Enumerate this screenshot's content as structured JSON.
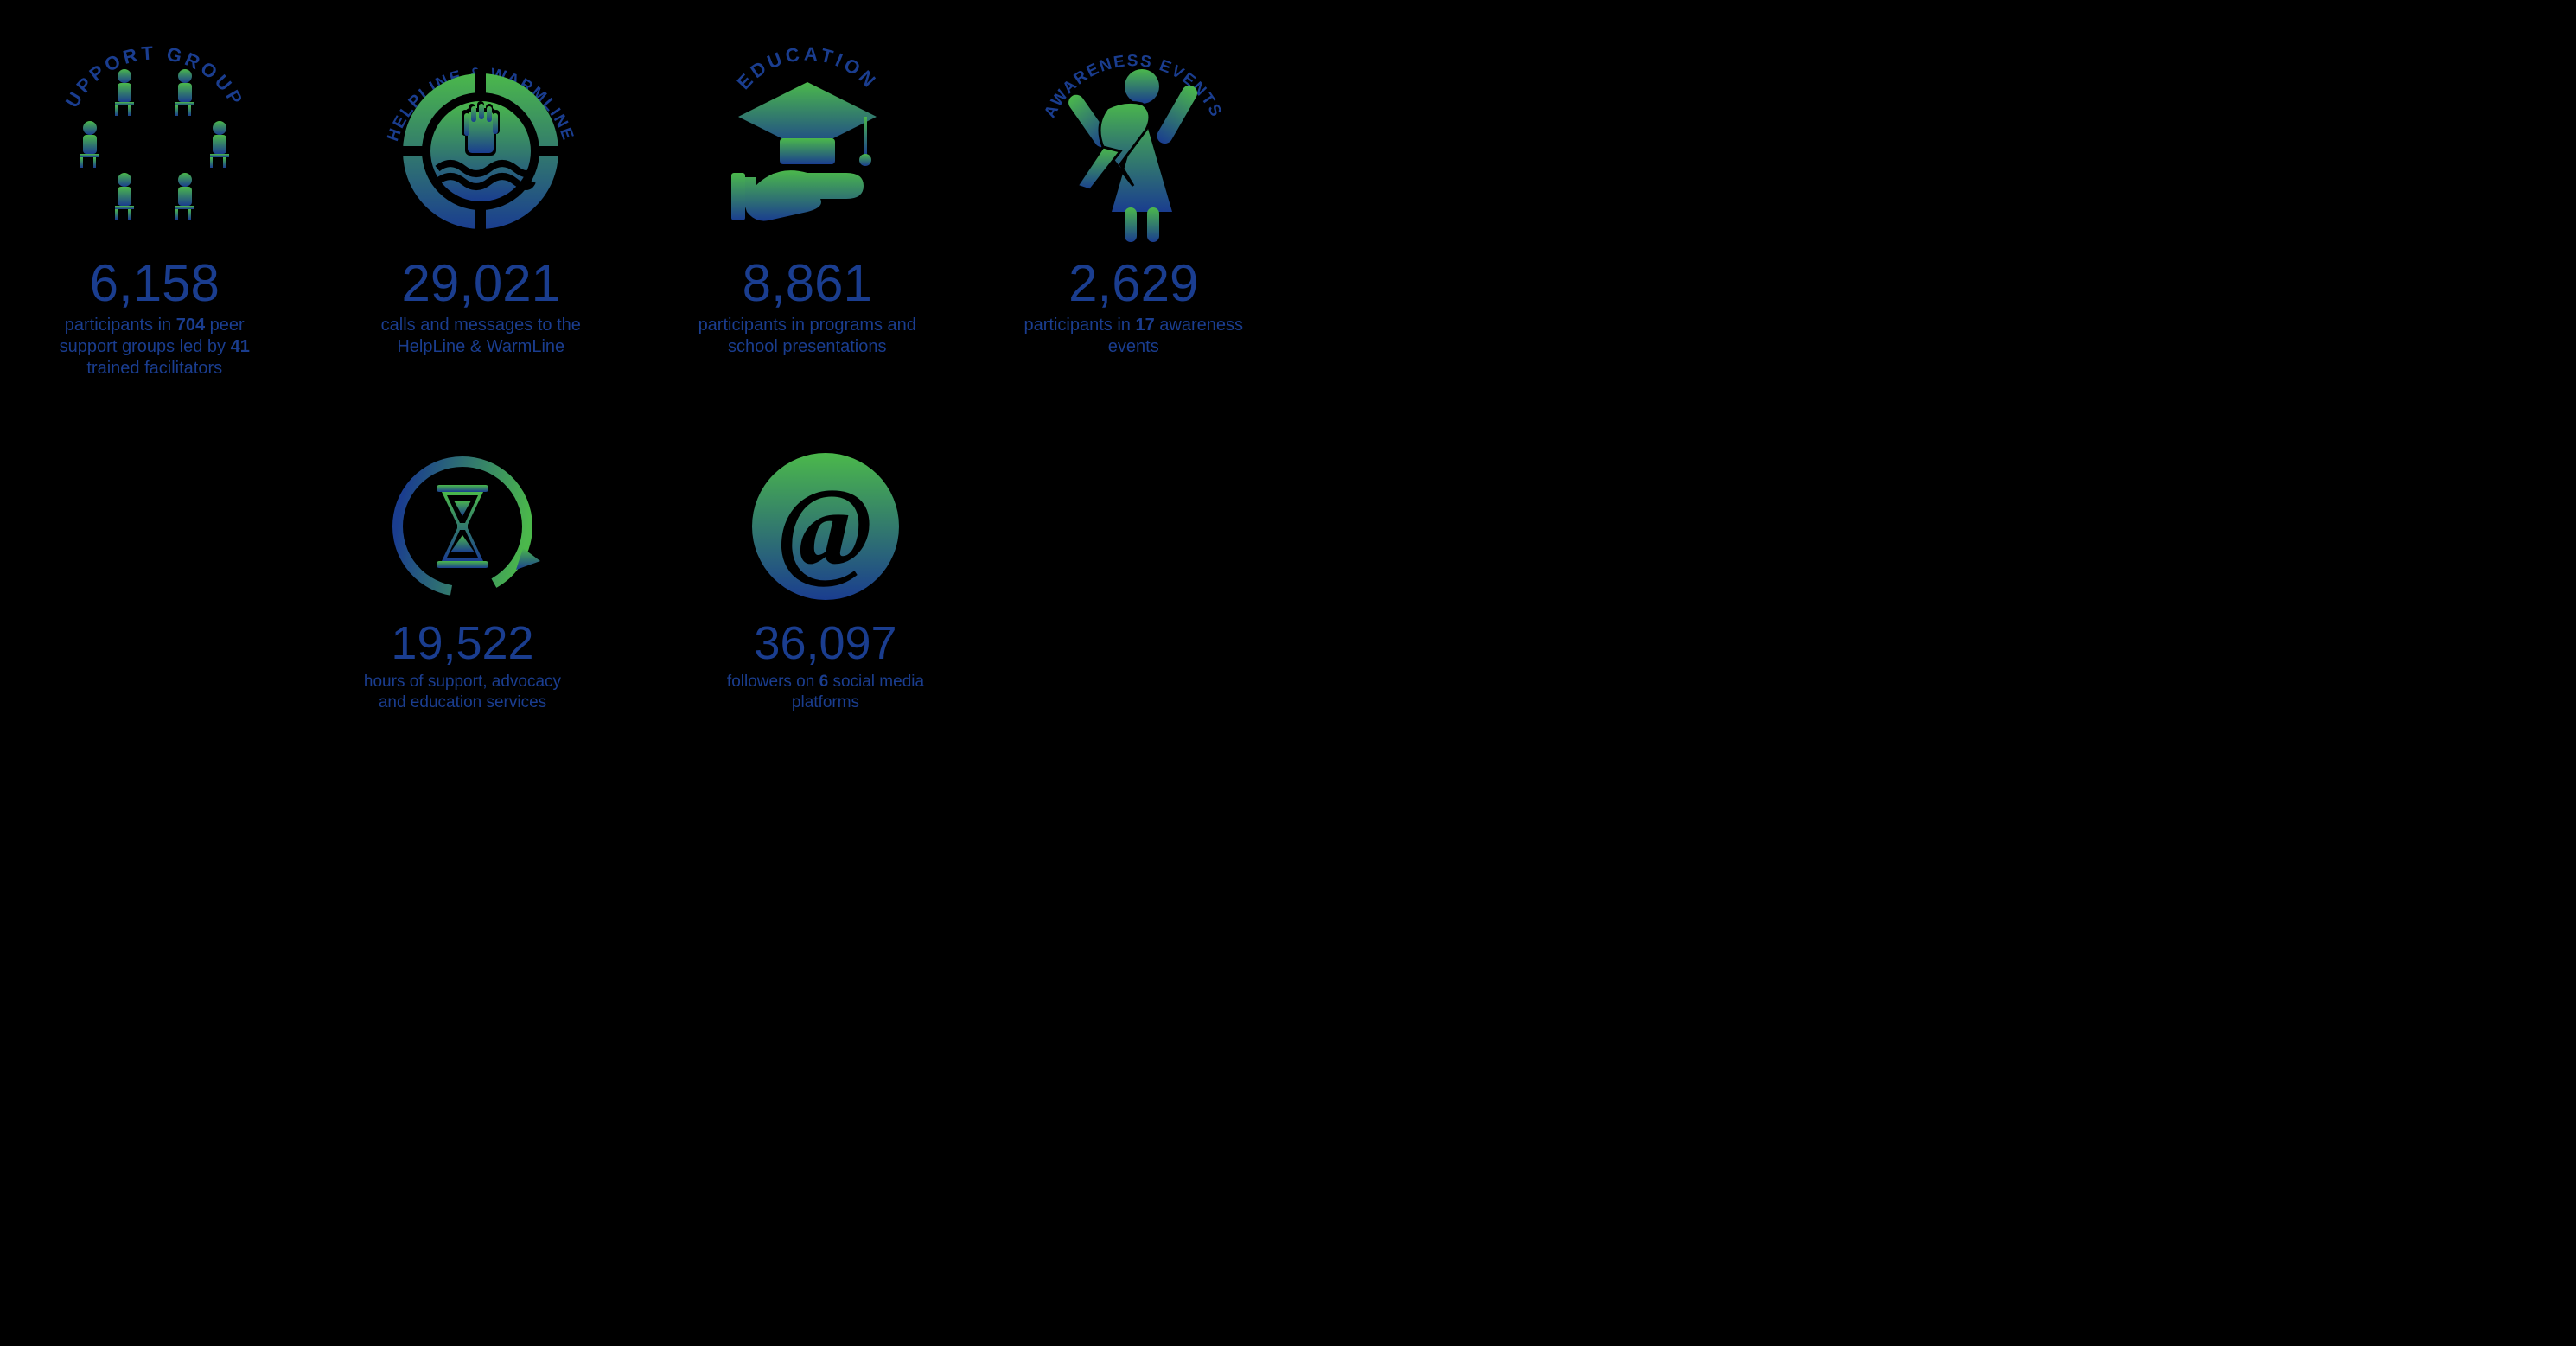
{
  "colors": {
    "text": "#1a3d8f",
    "grad_top": "#4bb84b",
    "grad_bot": "#1a3d8f",
    "bg": "#000000"
  },
  "stats": [
    {
      "label": "SUPPORT GROUPS",
      "number": "6,158",
      "desc_html": "participants in <b>704</b> peer support groups led by <b>41</b> trained facilitators"
    },
    {
      "label": "HELPLINE & WARMLINE",
      "number": "29,021",
      "desc_html": "calls and messages to the HelpLine & WarmLine"
    },
    {
      "label": "EDUCATION",
      "number": "8,861",
      "desc_html": "participants in programs and school presentations"
    },
    {
      "label": "AWARENESS EVENTS",
      "number": "2,629",
      "desc_html": "participants in <b>17</b> awareness events"
    },
    {
      "label": "",
      "number": "19,522",
      "desc_html": "hours of support, advocacy and education services"
    },
    {
      "label": "",
      "number": "36,097",
      "desc_html": "followers on <b>6</b> social media platforms"
    }
  ]
}
